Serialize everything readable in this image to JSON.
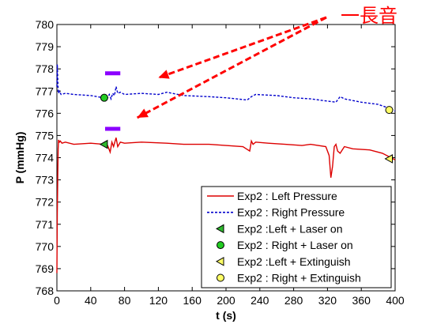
{
  "chart_data": {
    "type": "line",
    "xlabel": "t (s)",
    "ylabel": "P (mmHg)",
    "xlim": [
      0,
      400
    ],
    "ylim": [
      768,
      780
    ],
    "xticks": [
      0,
      40,
      80,
      120,
      160,
      200,
      240,
      280,
      320,
      360,
      400
    ],
    "yticks": [
      768,
      769,
      770,
      771,
      772,
      773,
      774,
      775,
      776,
      777,
      778,
      779,
      780
    ],
    "grid": false,
    "legend_position": "bottom-right",
    "series": [
      {
        "name": "Exp2 : Left Pressure",
        "color": "#dd0000",
        "style": "solid",
        "x": [
          0,
          0.5,
          1,
          1.5,
          2,
          3,
          4,
          6,
          10,
          20,
          40,
          55,
          60,
          63,
          65,
          67,
          70,
          72,
          75,
          80,
          100,
          130,
          150,
          180,
          200,
          220,
          228,
          230,
          232,
          235,
          250,
          270,
          290,
          300,
          318,
          322,
          324,
          326,
          328,
          330,
          332,
          335,
          340,
          350,
          370,
          385,
          395,
          400
        ],
        "y": [
          768.8,
          771.5,
          773.2,
          774.4,
          774.8,
          774.7,
          774.75,
          774.65,
          774.7,
          774.6,
          774.65,
          774.6,
          774.55,
          774.25,
          774.7,
          774.5,
          774.9,
          774.5,
          774.7,
          774.65,
          774.7,
          774.65,
          774.6,
          774.6,
          774.55,
          774.5,
          774.3,
          774.75,
          774.6,
          774.7,
          774.65,
          774.6,
          774.55,
          774.6,
          774.5,
          774.1,
          773.1,
          773.6,
          774.5,
          774.6,
          774.3,
          774.2,
          774.5,
          774.4,
          774.35,
          774.2,
          774.0,
          773.9
        ]
      },
      {
        "name": "Exp2 : Right Pressure",
        "color": "#0000cc",
        "style": "dashed",
        "x": [
          0,
          0.5,
          1,
          1.5,
          2,
          3,
          5,
          10,
          20,
          40,
          55,
          60,
          62,
          64,
          66,
          68,
          70,
          72,
          75,
          80,
          100,
          120,
          130,
          150,
          180,
          200,
          225,
          230,
          235,
          260,
          280,
          300,
          330,
          335,
          340,
          360,
          380,
          395,
          400
        ],
        "y": [
          777.2,
          778.2,
          777.6,
          777.0,
          776.9,
          777.0,
          776.85,
          776.9,
          776.85,
          776.8,
          776.7,
          776.7,
          776.85,
          776.65,
          776.9,
          776.8,
          777.2,
          776.9,
          776.95,
          776.85,
          776.9,
          776.85,
          776.95,
          776.8,
          776.75,
          776.7,
          776.6,
          776.75,
          776.85,
          776.8,
          776.7,
          776.65,
          776.5,
          776.75,
          776.65,
          776.5,
          776.4,
          776.2,
          776.1
        ]
      },
      {
        "name": "Exp2 :Left + Laser on",
        "marker": "triangle-left",
        "color": "#2db82d",
        "x": [
          56
        ],
        "y": [
          774.6
        ]
      },
      {
        "name": "Exp2 : Right  + Laser on",
        "marker": "circle",
        "color": "#22cc22",
        "x": [
          56
        ],
        "y": [
          776.7
        ]
      },
      {
        "name": "Exp2 :Left + Extinguish",
        "marker": "triangle-left",
        "color": "#ffff66",
        "x": [
          393
        ],
        "y": [
          773.95
        ]
      },
      {
        "name": "Exp2 : Right  + Extinguish",
        "marker": "circle",
        "color": "#ffff66",
        "x": [
          393
        ],
        "y": [
          776.15
        ]
      }
    ],
    "bars": [
      {
        "x": [
          57,
          75
        ],
        "y": 777.8,
        "color": "#8b00ff"
      },
      {
        "x": [
          57,
          75
        ],
        "y": 775.3,
        "color": "#8b00ff"
      }
    ],
    "annotation": {
      "text": "一長音",
      "color": "#ff0000",
      "arrow_targets": [
        [
          120,
          777.6
        ],
        [
          95,
          775.8
        ]
      ]
    }
  }
}
